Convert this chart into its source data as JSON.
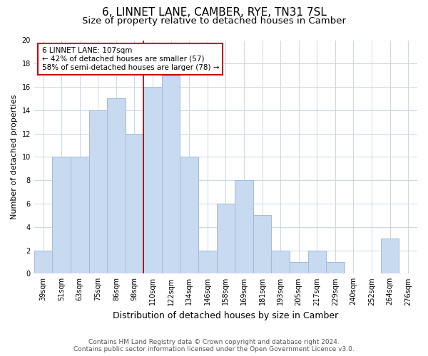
{
  "title": "6, LINNET LANE, CAMBER, RYE, TN31 7SL",
  "subtitle": "Size of property relative to detached houses in Camber",
  "xlabel": "Distribution of detached houses by size in Camber",
  "ylabel": "Number of detached properties",
  "bar_labels": [
    "39sqm",
    "51sqm",
    "63sqm",
    "75sqm",
    "86sqm",
    "98sqm",
    "110sqm",
    "122sqm",
    "134sqm",
    "146sqm",
    "158sqm",
    "169sqm",
    "181sqm",
    "193sqm",
    "205sqm",
    "217sqm",
    "229sqm",
    "240sqm",
    "252sqm",
    "264sqm",
    "276sqm"
  ],
  "bar_heights": [
    2,
    10,
    10,
    14,
    15,
    12,
    16,
    17,
    10,
    2,
    6,
    8,
    5,
    2,
    1,
    2,
    1,
    0,
    0,
    3,
    0
  ],
  "bar_color": "#c8daf0",
  "bar_edge_color": "#a0bcd8",
  "vline_x": 5.5,
  "vline_color": "#990000",
  "annotation_text": "6 LINNET LANE: 107sqm\n← 42% of detached houses are smaller (57)\n58% of semi-detached houses are larger (78) →",
  "annotation_box_color": "#ffffff",
  "annotation_box_edge": "#cc0000",
  "ylim": [
    0,
    20
  ],
  "yticks": [
    0,
    2,
    4,
    6,
    8,
    10,
    12,
    14,
    16,
    18,
    20
  ],
  "footer_line1": "Contains HM Land Registry data © Crown copyright and database right 2024.",
  "footer_line2": "Contains public sector information licensed under the Open Government Licence v3.0.",
  "bg_color": "#ffffff",
  "grid_color": "#c8d8e8",
  "title_fontsize": 11,
  "subtitle_fontsize": 9.5,
  "xlabel_fontsize": 9,
  "ylabel_fontsize": 8,
  "tick_fontsize": 7,
  "annotation_fontsize": 7.5,
  "footer_fontsize": 6.5
}
